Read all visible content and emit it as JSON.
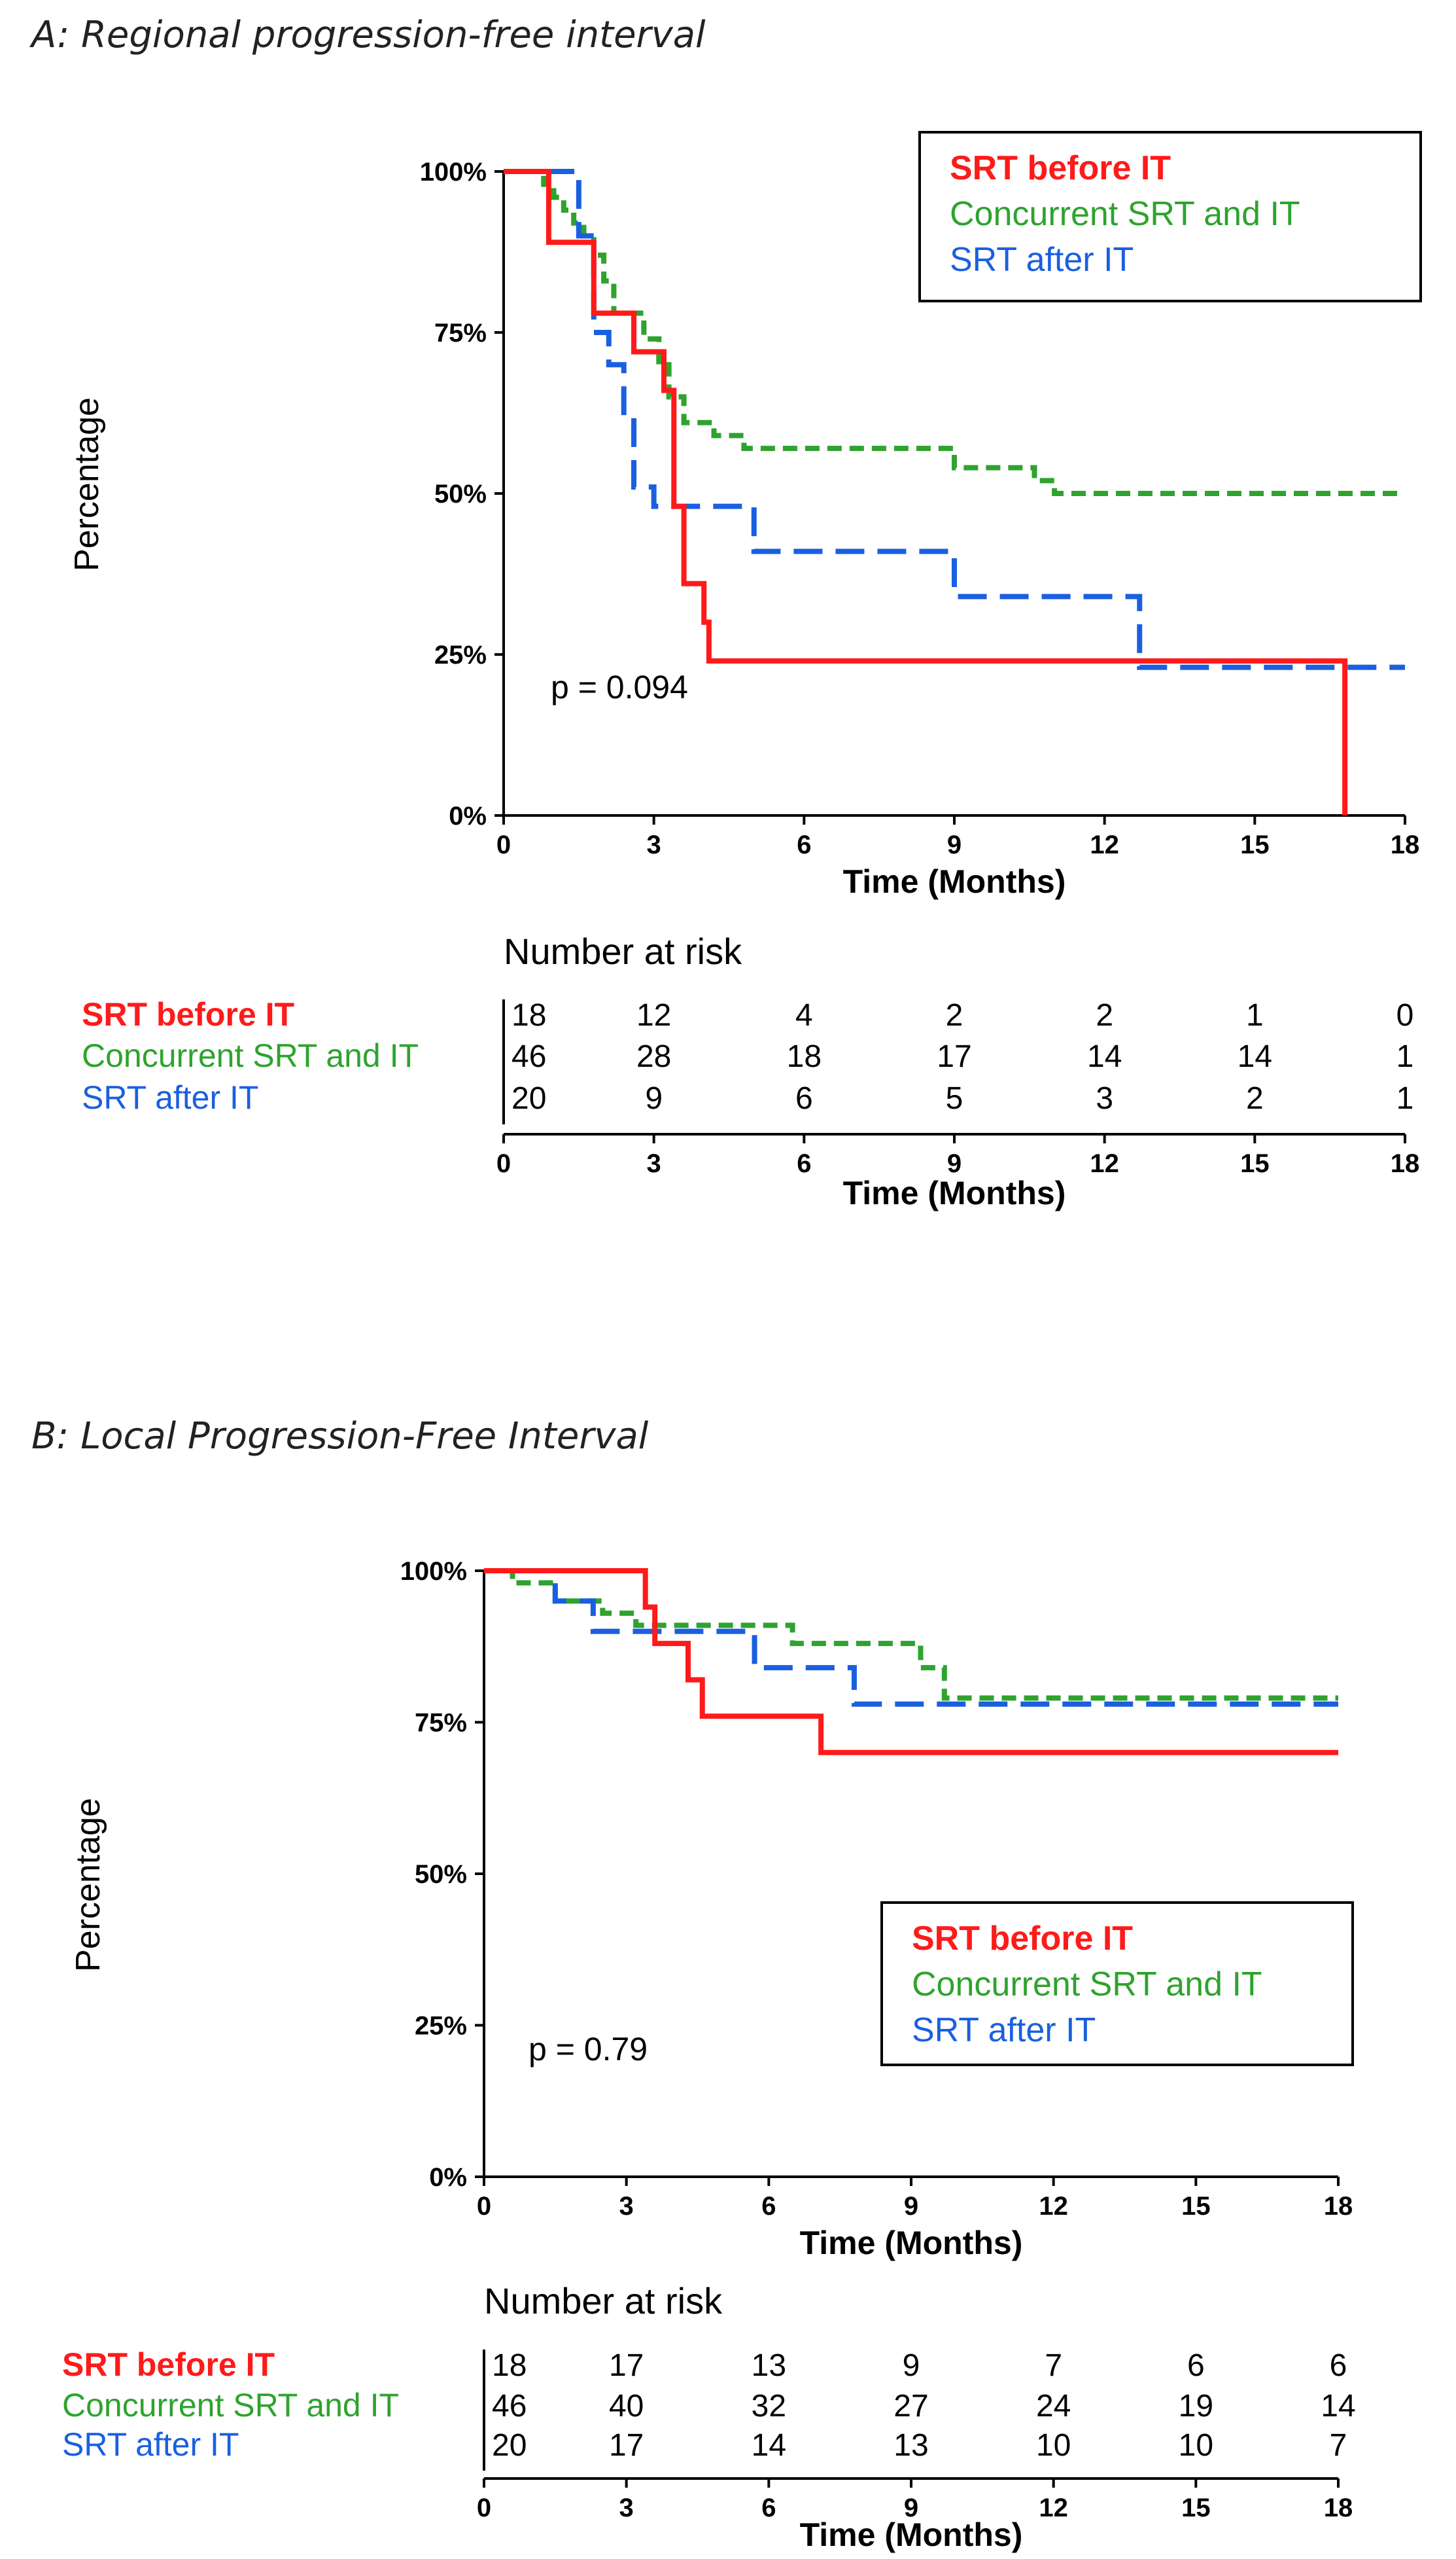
{
  "chart_data": [
    {
      "type": "line",
      "subtype": "kaplan-meier",
      "title": "A: Regional progression-free interval",
      "xlabel": "Time (Months)",
      "ylabel": "Percentage",
      "xlim": [
        0,
        18
      ],
      "ylim": [
        0,
        100
      ],
      "x_ticks": [
        "0",
        "3",
        "6",
        "9",
        "12",
        "15",
        "18"
      ],
      "y_ticks": [
        "0%",
        "25%",
        "50%",
        "75%",
        "100%"
      ],
      "annotation": "p = 0.094",
      "legend_position": "top-right",
      "series": [
        {
          "name": "SRT before IT",
          "color": "#ff1a1a",
          "dash": "solid",
          "steps": [
            [
              0,
              100
            ],
            [
              0.9,
              89
            ],
            [
              1.8,
              78
            ],
            [
              2.6,
              72
            ],
            [
              3.2,
              66
            ],
            [
              3.4,
              48
            ],
            [
              3.6,
              36
            ],
            [
              4.0,
              30
            ],
            [
              4.1,
              24
            ],
            [
              16.8,
              24
            ],
            [
              16.8,
              0
            ]
          ]
        },
        {
          "name": "Concurrent SRT and IT",
          "color": "#2ea32e",
          "dash": "short",
          "steps": [
            [
              0,
              100
            ],
            [
              0.8,
              98
            ],
            [
              1.0,
              96
            ],
            [
              1.2,
              94
            ],
            [
              1.4,
              92
            ],
            [
              1.6,
              90
            ],
            [
              1.8,
              87
            ],
            [
              2.0,
              83
            ],
            [
              2.2,
              78
            ],
            [
              2.8,
              74
            ],
            [
              3.1,
              70
            ],
            [
              3.3,
              65
            ],
            [
              3.6,
              61
            ],
            [
              4.2,
              59
            ],
            [
              4.8,
              57
            ],
            [
              9.0,
              54
            ],
            [
              10.6,
              52
            ],
            [
              11.0,
              50
            ],
            [
              18,
              50
            ]
          ]
        },
        {
          "name": "SRT after IT",
          "color": "#1a5fe0",
          "dash": "long",
          "steps": [
            [
              0,
              100
            ],
            [
              1.5,
              90
            ],
            [
              1.8,
              75
            ],
            [
              2.1,
              70
            ],
            [
              2.4,
              62
            ],
            [
              2.6,
              51
            ],
            [
              3.0,
              48
            ],
            [
              5.0,
              41
            ],
            [
              9.0,
              34
            ],
            [
              12.7,
              23
            ],
            [
              18,
              23
            ]
          ]
        }
      ],
      "risk_table": {
        "title": "Number at risk",
        "times": [
          "0",
          "3",
          "6",
          "9",
          "12",
          "15",
          "18"
        ],
        "xlabel": "Time (Months)",
        "rows": [
          {
            "name": "SRT before IT",
            "values": [
              "18",
              "12",
              "4",
              "2",
              "2",
              "1",
              "0"
            ]
          },
          {
            "name": "Concurrent SRT and IT",
            "values": [
              "46",
              "28",
              "18",
              "17",
              "14",
              "14",
              "1"
            ]
          },
          {
            "name": "SRT after IT",
            "values": [
              "20",
              "9",
              "6",
              "5",
              "3",
              "2",
              "1"
            ]
          }
        ]
      }
    },
    {
      "type": "line",
      "subtype": "kaplan-meier",
      "title": "B: Local Progression-Free Interval",
      "xlabel": "Time (Months)",
      "ylabel": "Percentage",
      "xlim": [
        0,
        18
      ],
      "ylim": [
        0,
        100
      ],
      "x_ticks": [
        "0",
        "3",
        "6",
        "9",
        "12",
        "15",
        "18"
      ],
      "y_ticks": [
        "0%",
        "25%",
        "50%",
        "75%",
        "100%"
      ],
      "annotation": "p = 0.79",
      "legend_position": "center-right",
      "series": [
        {
          "name": "SRT before IT",
          "color": "#ff1a1a",
          "dash": "solid",
          "steps": [
            [
              0,
              100
            ],
            [
              3.4,
              94
            ],
            [
              3.6,
              88
            ],
            [
              4.3,
              82
            ],
            [
              4.6,
              76
            ],
            [
              7.1,
              70
            ],
            [
              18,
              70
            ]
          ]
        },
        {
          "name": "Concurrent SRT and IT",
          "color": "#2ea32e",
          "dash": "short",
          "steps": [
            [
              0,
              100
            ],
            [
              0.6,
              98
            ],
            [
              1.5,
              95
            ],
            [
              2.5,
              93
            ],
            [
              3.2,
              91
            ],
            [
              6.5,
              88
            ],
            [
              9.2,
              84
            ],
            [
              9.7,
              79
            ],
            [
              18,
              79
            ]
          ]
        },
        {
          "name": "SRT after IT",
          "color": "#1a5fe0",
          "dash": "long",
          "steps": [
            [
              0,
              100
            ],
            [
              1.5,
              95
            ],
            [
              2.3,
              90
            ],
            [
              5.7,
              84
            ],
            [
              7.8,
              78
            ],
            [
              18,
              78
            ]
          ]
        }
      ],
      "risk_table": {
        "title": "Number at risk",
        "times": [
          "0",
          "3",
          "6",
          "9",
          "12",
          "15",
          "18"
        ],
        "xlabel": "Time (Months)",
        "rows": [
          {
            "name": "SRT before IT",
            "values": [
              "18",
              "17",
              "13",
              "9",
              "7",
              "6",
              "6"
            ]
          },
          {
            "name": "Concurrent SRT and IT",
            "values": [
              "46",
              "40",
              "32",
              "27",
              "24",
              "19",
              "14"
            ]
          },
          {
            "name": "SRT after IT",
            "values": [
              "20",
              "17",
              "14",
              "13",
              "10",
              "10",
              "7"
            ]
          }
        ]
      }
    }
  ]
}
